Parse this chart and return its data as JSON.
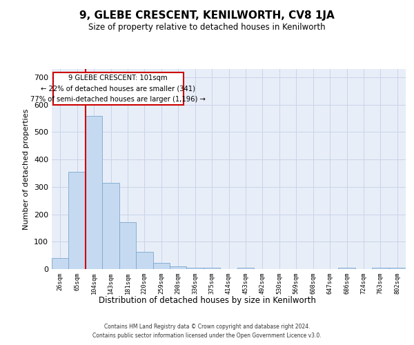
{
  "title": "9, GLEBE CRESCENT, KENILWORTH, CV8 1JA",
  "subtitle": "Size of property relative to detached houses in Kenilworth",
  "xlabel": "Distribution of detached houses by size in Kenilworth",
  "ylabel": "Number of detached properties",
  "bar_color": "#c5d9f0",
  "bar_edge_color": "#7aa8d0",
  "grid_color": "#c8d4e8",
  "background_color": "#e8eef8",
  "annotation_box_color": "#cc0000",
  "vline_color": "#cc0000",
  "categories": [
    "26sqm",
    "65sqm",
    "104sqm",
    "143sqm",
    "181sqm",
    "220sqm",
    "259sqm",
    "298sqm",
    "336sqm",
    "375sqm",
    "414sqm",
    "453sqm",
    "492sqm",
    "530sqm",
    "569sqm",
    "608sqm",
    "647sqm",
    "686sqm",
    "724sqm",
    "763sqm",
    "802sqm"
  ],
  "values": [
    40,
    355,
    560,
    315,
    170,
    62,
    22,
    10,
    5,
    5,
    0,
    5,
    0,
    0,
    0,
    0,
    0,
    5,
    0,
    5,
    5
  ],
  "ylim": [
    0,
    730
  ],
  "yticks": [
    0,
    100,
    200,
    300,
    400,
    500,
    600,
    700
  ],
  "vline_x_index": 2,
  "annotation_lines": [
    "9 GLEBE CRESCENT: 101sqm",
    "← 22% of detached houses are smaller (341)",
    "77% of semi-detached houses are larger (1,196) →"
  ],
  "footer_line1": "Contains HM Land Registry data © Crown copyright and database right 2024.",
  "footer_line2": "Contains public sector information licensed under the Open Government Licence v3.0."
}
